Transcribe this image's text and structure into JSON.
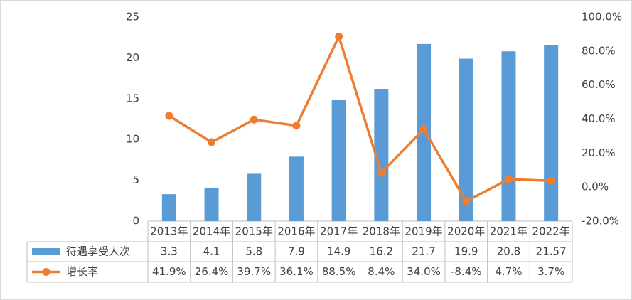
{
  "chart_data": {
    "type": "combo",
    "categories": [
      "2013年",
      "2014年",
      "2015年",
      "2016年",
      "2017年",
      "2018年",
      "2019年",
      "2020年",
      "2021年",
      "2022年"
    ],
    "series": [
      {
        "name": "待遇享受人次",
        "type": "bar",
        "color": "#5b9bd5",
        "values": [
          3.3,
          4.1,
          5.8,
          7.9,
          14.9,
          16.2,
          21.7,
          19.9,
          20.8,
          21.57
        ]
      },
      {
        "name": "增长率",
        "type": "line",
        "axis": "y2",
        "color": "#ed7d31",
        "values": [
          41.9,
          26.4,
          39.7,
          36.1,
          88.5,
          8.4,
          34.0,
          -8.4,
          4.7,
          3.7
        ],
        "value_labels": [
          "41.9%",
          "26.4%",
          "39.7%",
          "36.1%",
          "88.5%",
          "8.4%",
          "34.0%",
          "-8.4%",
          "4.7%",
          "3.7%"
        ]
      }
    ],
    "ylim": [
      0,
      25
    ],
    "yticks": [
      0,
      5,
      10,
      15,
      20,
      25
    ],
    "y2lim": [
      -20,
      100
    ],
    "y2ticks": [
      {
        "value": -20,
        "label": "-20.0%"
      },
      {
        "value": 0,
        "label": "0.0%"
      },
      {
        "value": 20,
        "label": "20.0%"
      },
      {
        "value": 40,
        "label": "40.0%"
      },
      {
        "value": 60,
        "label": "60.0%"
      },
      {
        "value": 80,
        "label": "80.0%"
      },
      {
        "value": 100,
        "label": "100.0%"
      }
    ],
    "grid": false
  }
}
